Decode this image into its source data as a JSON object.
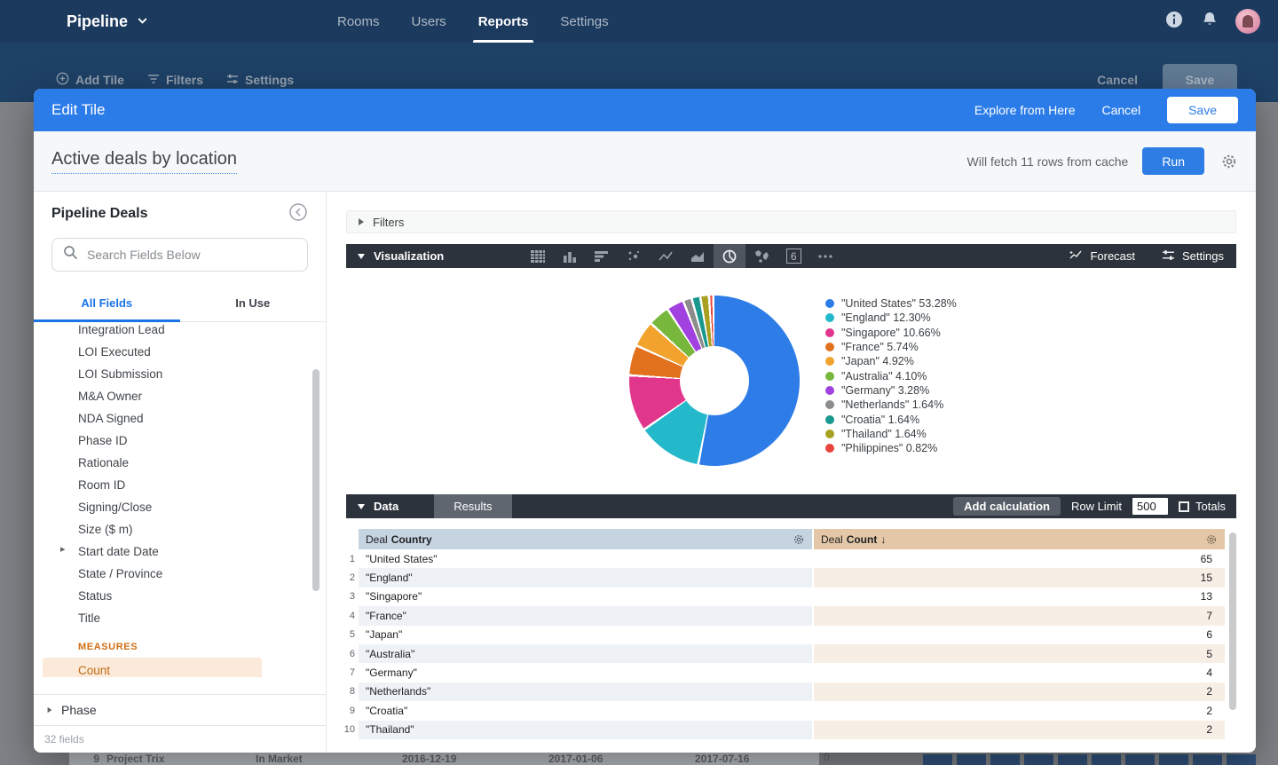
{
  "topnav": {
    "app_title": "Pipeline",
    "tabs": [
      "Rooms",
      "Users",
      "Reports",
      "Settings"
    ],
    "active_tab": "Reports"
  },
  "background_page": {
    "toolbar": {
      "add_tile": "Add Tile",
      "filters": "Filters",
      "settings": "Settings"
    },
    "cancel": "Cancel",
    "save": "Save",
    "bottom_row": {
      "row_num": "9",
      "cells": [
        "Project Trix",
        "In Market",
        "2016-12-19",
        "2017-01-06",
        "2017-07-16"
      ],
      "zero": "0",
      "square_count": 10
    }
  },
  "modal": {
    "header": {
      "title": "Edit Tile",
      "explore": "Explore from Here",
      "cancel": "Cancel",
      "save": "Save"
    },
    "title_bar": {
      "tile_title": "Active deals by location",
      "fetch_note": "Will fetch 11 rows from cache",
      "run": "Run"
    },
    "sidebar": {
      "view_name": "Pipeline Deals",
      "search_placeholder": "Search Fields Below",
      "tabs": [
        "All Fields",
        "In Use"
      ],
      "active_tab": "All Fields",
      "fields": [
        {
          "label": "Integration Lead"
        },
        {
          "label": "LOI Executed"
        },
        {
          "label": "LOI Submission"
        },
        {
          "label": "M&A Owner"
        },
        {
          "label": "NDA Signed"
        },
        {
          "label": "Phase ID"
        },
        {
          "label": "Rationale"
        },
        {
          "label": "Room ID"
        },
        {
          "label": "Signing/Close"
        },
        {
          "label": "Size ($ m)"
        },
        {
          "label": "Start date Date",
          "expandable": true
        },
        {
          "label": "State / Province"
        },
        {
          "label": "Status"
        },
        {
          "label": "Title"
        }
      ],
      "measures_label": "MEASURES",
      "selected_measure": "Count",
      "group_label": "Phase",
      "footer": "32 fields"
    },
    "filters_bar": {
      "label": "Filters"
    },
    "viz_bar": {
      "label": "Visualization",
      "forecast": "Forecast",
      "settings": "Settings",
      "single_value_icon": "6",
      "selected_type": "pie"
    },
    "data_bar": {
      "label": "Data",
      "results_tab": "Results",
      "add_calculation": "Add calculation",
      "row_limit_label": "Row Limit",
      "row_limit_value": "500",
      "totals_label": "Totals",
      "totals_checked": false
    },
    "table": {
      "columns": [
        {
          "prefix": "Deal",
          "name": "Country",
          "sort_arrow": ""
        },
        {
          "prefix": "Deal",
          "name": "Count",
          "sort_arrow": "↓"
        }
      ],
      "rows": [
        {
          "n": 1,
          "country": "\"United States\"",
          "count": 65
        },
        {
          "n": 2,
          "country": "\"England\"",
          "count": 15
        },
        {
          "n": 3,
          "country": "\"Singapore\"",
          "count": 13
        },
        {
          "n": 4,
          "country": "\"France\"",
          "count": 7
        },
        {
          "n": 5,
          "country": "\"Japan\"",
          "count": 6
        },
        {
          "n": 6,
          "country": "\"Australia\"",
          "count": 5
        },
        {
          "n": 7,
          "country": "\"Germany\"",
          "count": 4
        },
        {
          "n": 8,
          "country": "\"Netherlands\"",
          "count": 2
        },
        {
          "n": 9,
          "country": "\"Croatia\"",
          "count": 2
        },
        {
          "n": 10,
          "country": "\"Thailand\"",
          "count": 2
        }
      ]
    }
  },
  "chart_data": {
    "type": "pie",
    "donut": true,
    "legend_position": "right",
    "labels": [
      "\"United States\"",
      "\"England\"",
      "\"Singapore\"",
      "\"France\"",
      "\"Japan\"",
      "\"Australia\"",
      "\"Germany\"",
      "\"Netherlands\"",
      "\"Croatia\"",
      "\"Thailand\"",
      "\"Philippines\""
    ],
    "values_pct": [
      53.28,
      12.3,
      10.66,
      5.74,
      4.92,
      4.1,
      3.28,
      1.64,
      1.64,
      1.64,
      0.82
    ],
    "counts": [
      65,
      15,
      13,
      7,
      6,
      5,
      4,
      2,
      2,
      2,
      1
    ],
    "colors": [
      "#2d7ce8",
      "#23b8ca",
      "#e0368c",
      "#e2711d",
      "#f2a32e",
      "#77b73c",
      "#a142e0",
      "#8c8c8c",
      "#18988f",
      "#a8a020",
      "#e8453c"
    ]
  },
  "accent_colors": {
    "modal_header": "#2b7ce9",
    "run_button": "#2e7de5",
    "nav_bg": "#1c3a5e",
    "dark_bar": "#2d333c",
    "measure_orange": "#cf6f15"
  }
}
